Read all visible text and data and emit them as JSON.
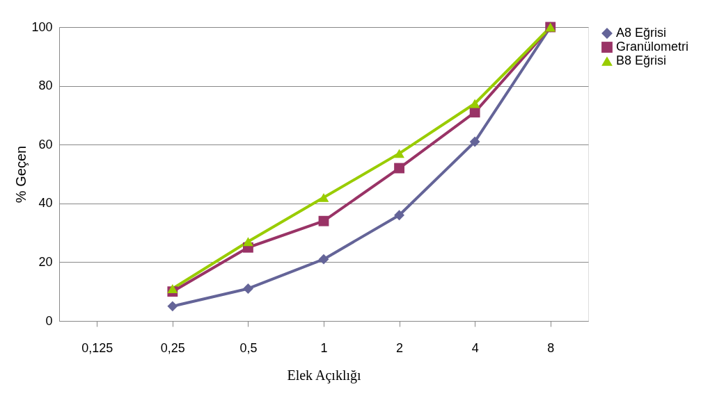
{
  "chart_data": {
    "type": "line",
    "categories": [
      "0,125",
      "0,25",
      "0,5",
      "1",
      "2",
      "4",
      "8"
    ],
    "xlabel": "Elek Açıklığı",
    "ylabel": "% Geçen",
    "series": [
      {
        "name": "A8 Eğrisi",
        "color": "#646498",
        "marker": "diamond",
        "values": [
          null,
          5,
          11,
          21,
          36,
          61,
          100
        ]
      },
      {
        "name": "Granülometri",
        "color": "#993366",
        "marker": "square",
        "values": [
          null,
          10,
          25,
          34,
          52,
          71,
          100
        ]
      },
      {
        "name": "B8 Eğrisi",
        "color": "#99cc00",
        "marker": "triangle",
        "values": [
          null,
          11,
          27,
          42,
          57,
          74,
          100
        ]
      }
    ],
    "ylim": [
      0,
      100
    ],
    "yticks": [
      0,
      20,
      40,
      60,
      80,
      100
    ],
    "grid": "y",
    "legend": "right",
    "line_style": "solid"
  }
}
